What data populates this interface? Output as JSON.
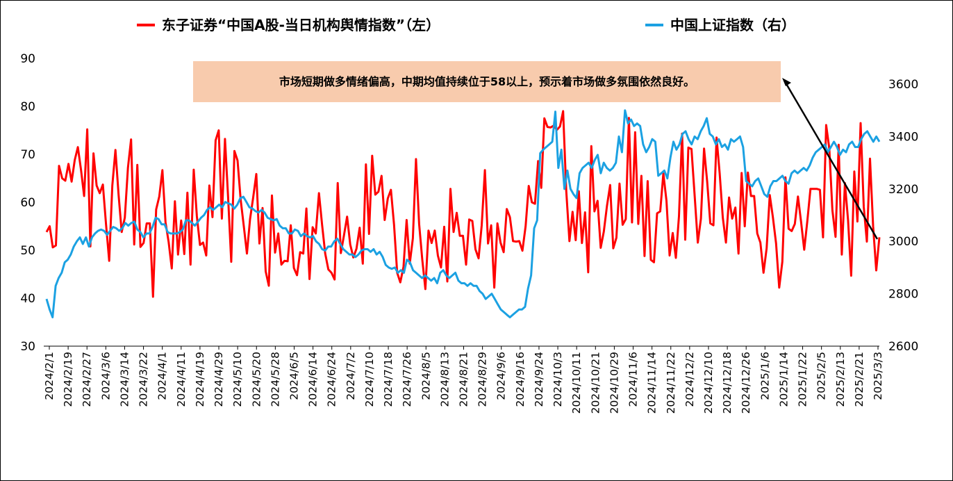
{
  "chart_data": {
    "type": "line",
    "legend": {
      "placement": "top",
      "entries": [
        {
          "name": "东子证券“中国A股-当日机构舆情指数”（左）",
          "color": "#ff0000",
          "axis": "left"
        },
        {
          "name": "中国上证指数（右）",
          "color": "#1ba1e2",
          "axis": "right"
        }
      ]
    },
    "annotation": {
      "text": "市场短期做多情绪偏高，中期均值持续位于58以上，预示着市场做多氛围依然良好。",
      "background": "#f8cbad"
    },
    "y_left": {
      "min": 30,
      "max": 90,
      "ticks": [
        30,
        40,
        50,
        60,
        70,
        80,
        90
      ]
    },
    "y_right": {
      "min": 2600,
      "max": 3600,
      "ticks": [
        2600,
        2800,
        3000,
        3200,
        3400,
        3600
      ]
    },
    "x_ticks": [
      "2024/2/1",
      "2024/2/19",
      "2024/2/27",
      "2024/3/6",
      "2024/3/14",
      "2024/3/22",
      "2024/4/1",
      "2024/4/11",
      "2024/4/19",
      "2024/4/29",
      "2024/5/10",
      "2024/5/20",
      "2024/5/28",
      "2024/6/5",
      "2024/6/14",
      "2024/6/24",
      "2024/7/2",
      "2024/7/10",
      "2024/7/18",
      "2024/7/26",
      "2024/8/5",
      "2024/8/13",
      "2024/8/21",
      "2024/8/29",
      "2024/9/6",
      "2024/9/16",
      "2024/9/24",
      "2024/10/3",
      "2024/10/11",
      "2024/10/21",
      "2024/10/29",
      "2024/11/6",
      "2024/11/14",
      "2024/11/22",
      "2024/12/2",
      "2024/12/10",
      "2024/12/18",
      "2024/12/26",
      "2025/1/6",
      "2025/1/14",
      "2025/1/22",
      "2025/2/5",
      "2025/2/13",
      "2025/2/21",
      "2025/3/3"
    ],
    "series": [
      {
        "name": "东子证券“中国A股-当日机构舆情指数”（左）",
        "axis": "left",
        "color": "#ff0000",
        "values": [
          53.8,
          55.0,
          50.6,
          51.0,
          67.6,
          65.0,
          64.5,
          68.0,
          64.3,
          68.8,
          71.5,
          66.8,
          61.3,
          75.2,
          50.8,
          70.2,
          63.5,
          61.9,
          63.7,
          55.5,
          47.8,
          63.5,
          70.9,
          61.6,
          53.8,
          56.8,
          67.2,
          73.1,
          51.2,
          67.8,
          50.7,
          51.5,
          55.6,
          55.6,
          40.3,
          58.5,
          61.2,
          66.7,
          55.8,
          51.7,
          46.2,
          60.2,
          49.1,
          56.2,
          49.2,
          62.0,
          47.0,
          66.8,
          57.1,
          51.1,
          51.6,
          48.9,
          63.5,
          56.9,
          72.9,
          75.0,
          56.6,
          73.2,
          61.0,
          47.6,
          70.7,
          68.7,
          60.5,
          55.0,
          49.3,
          56.5,
          61.0,
          65.9,
          51.4,
          58.8,
          45.6,
          42.6,
          61.4,
          49.5,
          53.5,
          47.0,
          47.8,
          47.7,
          55.2,
          46.3,
          44.8,
          49.6,
          49.3,
          58.7,
          44.0,
          54.8,
          53.5,
          61.9,
          55.3,
          49.3,
          46.0,
          45.3,
          43.9,
          64.0,
          49.4,
          53.1,
          57.0,
          51.2,
          48.5,
          50.3,
          54.7,
          47.2,
          67.9,
          53.4,
          69.7,
          61.6,
          62.2,
          65.5,
          56.3,
          60.8,
          62.6,
          55.3,
          45.3,
          43.3,
          46.5,
          56.3,
          47.2,
          52.5,
          69.0,
          55.5,
          48.1,
          41.9,
          54.1,
          51.5,
          54.1,
          48.9,
          46.4,
          54.9,
          43.5,
          62.8,
          53.8,
          57.8,
          53.0,
          53.0,
          47.0,
          56.4,
          56.1,
          50.2,
          48.3,
          55.2,
          66.7,
          51.4,
          55.2,
          42.2,
          55.6,
          51.6,
          49.6,
          58.6,
          56.9,
          51.9,
          51.8,
          51.9,
          49.9,
          55.0,
          63.4,
          60.0,
          59.7,
          68.6,
          63.0,
          77.5,
          75.7,
          75.6,
          76.0,
          75.1,
          75.8,
          79.0,
          62.4,
          51.9,
          58.0,
          52.1,
          62.3,
          51.5,
          57.9,
          45.4,
          71.7,
          58.1,
          60.3,
          50.5,
          53.9,
          59.2,
          63.6,
          50.4,
          52.6,
          63.9,
          55.3,
          56.5,
          77.6,
          55.8,
          74.6,
          55.5,
          65.5,
          48.8,
          64.4,
          48.0,
          47.5,
          57.7,
          58.1,
          66.0,
          60.3,
          48.9,
          53.6,
          48.4,
          57.1,
          74.3,
          52.2,
          71.4,
          71.1,
          61.3,
          51.6,
          56.6,
          71.2,
          64.3,
          55.6,
          55.2,
          73.5,
          66.0,
          56.8,
          51.6,
          61.0,
          56.6,
          58.9,
          49.3,
          66.1,
          55.0,
          66.2,
          61.3,
          61.3,
          53.5,
          51.6,
          45.3,
          50.4,
          61.5,
          56.9,
          51.4,
          42.2,
          47.6,
          65.2,
          54.5,
          54.0,
          55.5,
          61.2,
          55.9,
          50.1,
          56.1,
          62.8,
          62.8,
          62.8,
          62.6,
          52.7,
          76.1,
          71.2,
          58.3,
          52.8,
          72.0,
          49.1,
          64.0,
          56.3,
          44.7,
          66.4,
          56.0,
          76.5,
          59.1,
          51.8,
          69.1,
          55.0,
          45.8,
          52.7
        ]
      },
      {
        "name": "中国上证指数（右）",
        "axis": "right",
        "color": "#1ba1e2",
        "values": [
          2780,
          2740,
          2710,
          2830,
          2860,
          2880,
          2920,
          2930,
          2950,
          2980,
          3000,
          3015,
          2990,
          3015,
          2980,
          3015,
          3030,
          3040,
          3045,
          3040,
          3025,
          3040,
          3055,
          3050,
          3040,
          3050,
          3070,
          3060,
          3070,
          3075,
          3045,
          3035,
          3015,
          3030,
          3030,
          3055,
          3090,
          3085,
          3065,
          3065,
          3035,
          3030,
          3030,
          3030,
          3035,
          3045,
          3080,
          3080,
          3070,
          3060,
          3075,
          3090,
          3100,
          3120,
          3130,
          3120,
          3130,
          3140,
          3130,
          3150,
          3145,
          3140,
          3125,
          3140,
          3165,
          3170,
          3150,
          3130,
          3125,
          3115,
          3110,
          3120,
          3110,
          3090,
          3085,
          3080,
          3085,
          3060,
          3050,
          3050,
          3030,
          3030,
          3045,
          3040,
          3020,
          3030,
          3020,
          3015,
          3020,
          3000,
          2990,
          2970,
          2965,
          2980,
          2980,
          3000,
          3010,
          2990,
          2970,
          2960,
          2950,
          2950,
          2940,
          2950,
          2965,
          2970,
          2970,
          2960,
          2970,
          2950,
          2960,
          2940,
          2910,
          2900,
          2895,
          2900,
          2880,
          2890,
          2880,
          2930,
          2920,
          2890,
          2880,
          2870,
          2860,
          2870,
          2860,
          2850,
          2860,
          2840,
          2880,
          2890,
          2870,
          2860,
          2870,
          2880,
          2850,
          2840,
          2840,
          2830,
          2840,
          2830,
          2830,
          2810,
          2800,
          2780,
          2790,
          2800,
          2780,
          2760,
          2740,
          2730,
          2720,
          2710,
          2720,
          2730,
          2740,
          2740,
          2750,
          2820,
          2870,
          3050,
          3080,
          3336,
          3350,
          3360,
          3370,
          3380,
          3495,
          3280,
          3350,
          3200,
          3270,
          3200,
          3180,
          3165,
          3260,
          3280,
          3290,
          3300,
          3280,
          3310,
          3330,
          3260,
          3300,
          3280,
          3270,
          3280,
          3300,
          3400,
          3340,
          3500,
          3450,
          3465,
          3440,
          3450,
          3440,
          3370,
          3340,
          3360,
          3390,
          3380,
          3250,
          3260,
          3270,
          3240,
          3320,
          3380,
          3350,
          3370,
          3410,
          3420,
          3390,
          3370,
          3400,
          3390,
          3420,
          3440,
          3470,
          3410,
          3400,
          3370,
          3390,
          3360,
          3370,
          3350,
          3390,
          3380,
          3390,
          3400,
          3360,
          3230,
          3220,
          3210,
          3230,
          3240,
          3210,
          3180,
          3170,
          3210,
          3230,
          3230,
          3240,
          3250,
          3230,
          3220,
          3260,
          3270,
          3260,
          3270,
          3280,
          3270,
          3290,
          3320,
          3340,
          3350,
          3360,
          3370,
          3340,
          3360,
          3380,
          3360,
          3330,
          3350,
          3340,
          3370,
          3380,
          3360,
          3360,
          3390,
          3410,
          3420,
          3400,
          3380,
          3400,
          3380
        ]
      }
    ]
  }
}
